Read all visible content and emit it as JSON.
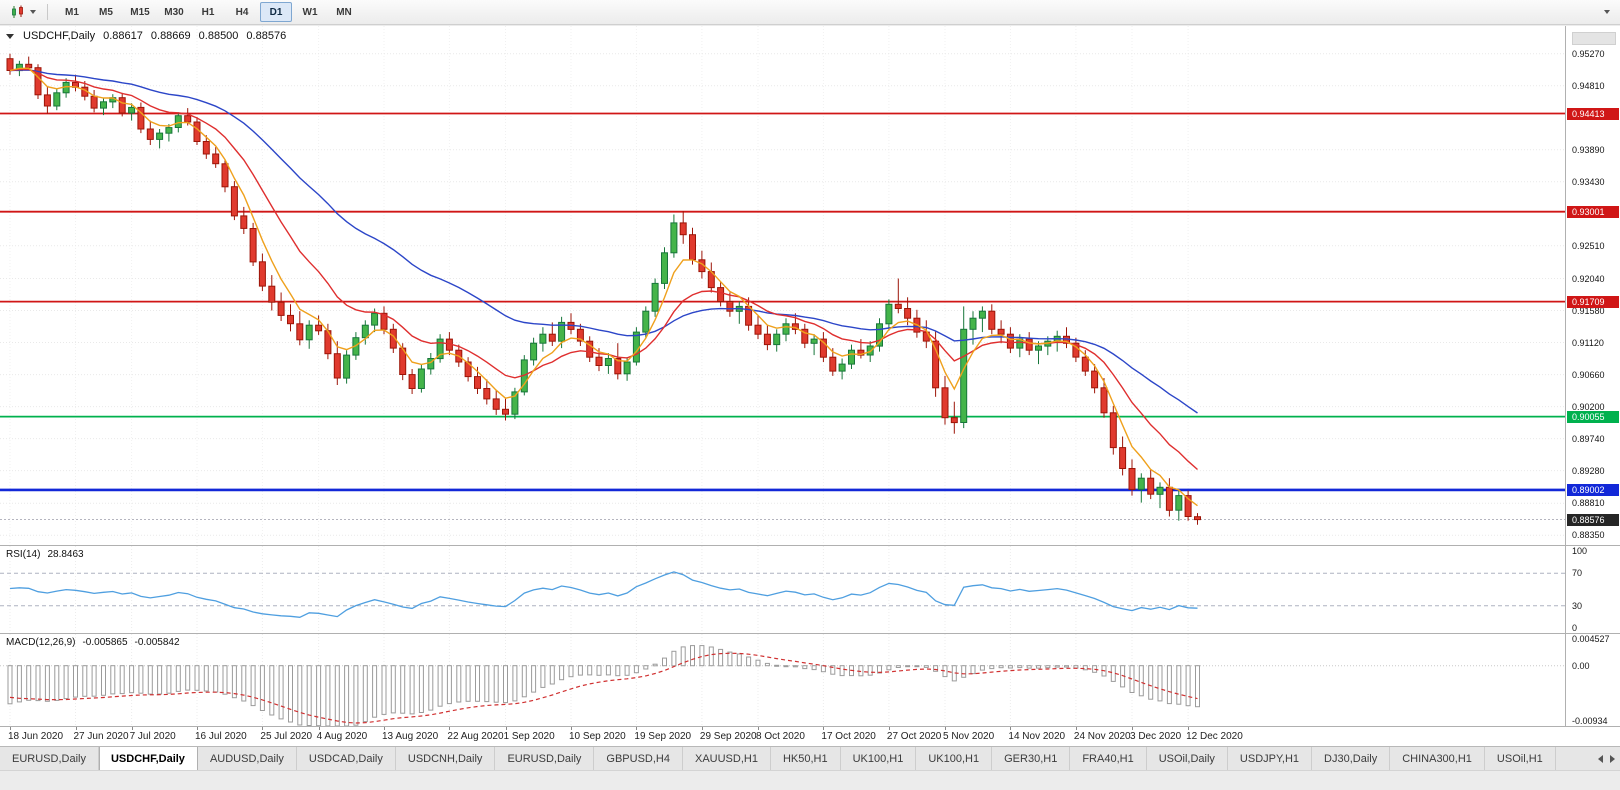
{
  "toolbar": {
    "timeframes": [
      "M1",
      "M5",
      "M15",
      "M30",
      "H1",
      "H4",
      "D1",
      "W1",
      "MN"
    ],
    "active_timeframe": "D1"
  },
  "chart": {
    "symbol_period": "USDCHF,Daily",
    "open": "0.88617",
    "high": "0.88669",
    "low": "0.88500",
    "close": "0.88576"
  },
  "price_scale": {
    "ticks": [
      "0.95270",
      "0.94810",
      "0.93890",
      "0.93430",
      "0.92510",
      "0.92040",
      "0.91580",
      "0.91120",
      "0.90660",
      "0.90200",
      "0.89740",
      "0.89280",
      "0.88810",
      "0.88350"
    ]
  },
  "rsi": {
    "label": "RSI(14)",
    "value": "28.8463",
    "ticks": [
      "100",
      "70",
      "30",
      "0"
    ]
  },
  "macd": {
    "label": "MACD(12,26,9)",
    "value_main": "-0.005865",
    "value_signal": "-0.005842",
    "ticks": [
      "0.004527",
      "0.00",
      "-0.00934"
    ]
  },
  "date_axis": {
    "labels": [
      "18 Jun 2020",
      "27 Jun 2020",
      "7 Jul 2020",
      "16 Jul 2020",
      "25 Jul 2020",
      "4 Aug 2020",
      "13 Aug 2020",
      "22 Aug 2020",
      "1 Sep 2020",
      "10 Sep 2020",
      "19 Sep 2020",
      "29 Sep 2020",
      "8 Oct 2020",
      "17 Oct 2020",
      "27 Oct 2020",
      "5 Nov 2020",
      "14 Nov 2020",
      "24 Nov 2020",
      "3 Dec 2020",
      "12 Dec 2020"
    ],
    "bar_indices": [
      0,
      7,
      13,
      20,
      27,
      33,
      40,
      47,
      53,
      60,
      67,
      74,
      80,
      87,
      94,
      100,
      107,
      114,
      120,
      126
    ]
  },
  "tabs": {
    "items": [
      "EURUSD,Daily",
      "USDCHF,Daily",
      "AUDUSD,Daily",
      "USDCAD,Daily",
      "USDCNH,Daily",
      "EURUSD,Daily",
      "GBPUSD,H4",
      "XAUUSD,H1",
      "HK50,H1",
      "UK100,H1",
      "UK100,H1",
      "GER30,H1",
      "FRA40,H1",
      "USOil,Daily",
      "USDJPY,H1",
      "DJ30,Daily",
      "CHINA300,H1",
      "USOil,H1"
    ],
    "active_index": 1
  },
  "icons": {
    "charts_menu": "candlestick-chart-icon",
    "charts_menu_caret": "caret-down-icon",
    "toolbar_overflow": "chevron-down-icon",
    "one_click_trading": "triangle-down-icon",
    "tab_scroll_left": "triangle-left-icon",
    "tab_scroll_right": "triangle-right-icon"
  },
  "chart_data": {
    "type": "candlestick",
    "symbol": "USDCHF",
    "timeframe": "Daily",
    "price_range": {
      "top": 0.9567,
      "bottom": 0.8821
    },
    "bars": {
      "open": [
        0.952,
        0.9503,
        0.9512,
        0.9507,
        0.9468,
        0.9452,
        0.9471,
        0.9486,
        0.9479,
        0.9466,
        0.9449,
        0.9458,
        0.9464,
        0.9442,
        0.945,
        0.9419,
        0.9404,
        0.9413,
        0.9421,
        0.9438,
        0.9429,
        0.9401,
        0.9383,
        0.9369,
        0.9336,
        0.9294,
        0.9276,
        0.9228,
        0.9193,
        0.917,
        0.9151,
        0.9139,
        0.9116,
        0.9137,
        0.9129,
        0.9096,
        0.9061,
        0.9094,
        0.9119,
        0.9137,
        0.9154,
        0.9131,
        0.9104,
        0.9066,
        0.9046,
        0.9074,
        0.9089,
        0.9117,
        0.9101,
        0.9084,
        0.9063,
        0.9046,
        0.9031,
        0.9016,
        0.9009,
        0.9041,
        0.9087,
        0.9111,
        0.9124,
        0.9114,
        0.9141,
        0.9131,
        0.9114,
        0.9091,
        0.9079,
        0.9089,
        0.9067,
        0.9084,
        0.9127,
        0.9157,
        0.9197,
        0.9241,
        0.9284,
        0.9267,
        0.9231,
        0.9214,
        0.9191,
        0.9171,
        0.9157,
        0.9164,
        0.9137,
        0.9124,
        0.9109,
        0.9124,
        0.9139,
        0.9131,
        0.9111,
        0.9117,
        0.9091,
        0.9071,
        0.9081,
        0.9101,
        0.9094,
        0.9107,
        0.9139,
        0.9167,
        0.9161,
        0.9147,
        0.9127,
        0.9114,
        0.9047,
        0.9004,
        0.8997,
        0.9131,
        0.9147,
        0.9157,
        0.9131,
        0.9124,
        0.9104,
        0.9117,
        0.9101,
        0.9107,
        0.9114,
        0.9121,
        0.9111,
        0.9091,
        0.9071,
        0.9047,
        0.9011,
        0.8961,
        0.8931,
        0.8901,
        0.8917,
        0.8894,
        0.8904,
        0.8871,
        0.8892,
        0.88617
      ],
      "high": [
        0.9527,
        0.9517,
        0.9523,
        0.9512,
        0.948,
        0.9477,
        0.9492,
        0.9497,
        0.9488,
        0.9475,
        0.9463,
        0.9469,
        0.9471,
        0.9456,
        0.9457,
        0.9431,
        0.9419,
        0.9426,
        0.9443,
        0.9449,
        0.9436,
        0.941,
        0.9393,
        0.9375,
        0.9344,
        0.9307,
        0.9284,
        0.924,
        0.9209,
        0.9184,
        0.9167,
        0.9157,
        0.9144,
        0.9151,
        0.9139,
        0.9114,
        0.9101,
        0.9127,
        0.9144,
        0.9161,
        0.9164,
        0.9139,
        0.9111,
        0.9074,
        0.9081,
        0.9097,
        0.9124,
        0.9127,
        0.9109,
        0.9091,
        0.9077,
        0.9059,
        0.9044,
        0.9032,
        0.9047,
        0.9094,
        0.9119,
        0.9134,
        0.9141,
        0.9149,
        0.9154,
        0.9139,
        0.9121,
        0.9104,
        0.9097,
        0.9111,
        0.9091,
        0.9134,
        0.9164,
        0.9204,
        0.9249,
        0.9296,
        0.9301,
        0.9277,
        0.9244,
        0.9227,
        0.9199,
        0.9184,
        0.9171,
        0.9177,
        0.9151,
        0.9137,
        0.9131,
        0.9147,
        0.9154,
        0.9139,
        0.9124,
        0.9127,
        0.9104,
        0.9089,
        0.9109,
        0.9117,
        0.9114,
        0.9147,
        0.9174,
        0.9204,
        0.9177,
        0.9159,
        0.9144,
        0.9129,
        0.9064,
        0.9027,
        0.9164,
        0.9157,
        0.9164,
        0.9167,
        0.9144,
        0.9134,
        0.9124,
        0.9127,
        0.9114,
        0.9121,
        0.9129,
        0.9134,
        0.9119,
        0.9101,
        0.9081,
        0.9061,
        0.9021,
        0.8977,
        0.8944,
        0.8924,
        0.8929,
        0.8911,
        0.8917,
        0.8901,
        0.8899,
        0.88669
      ],
      "low": [
        0.9497,
        0.9495,
        0.9504,
        0.9462,
        0.9441,
        0.9446,
        0.9464,
        0.9473,
        0.946,
        0.9443,
        0.9439,
        0.9449,
        0.9437,
        0.9431,
        0.9413,
        0.9396,
        0.9391,
        0.9401,
        0.9414,
        0.9424,
        0.9396,
        0.9376,
        0.9363,
        0.9328,
        0.9288,
        0.9268,
        0.9222,
        0.9186,
        0.9158,
        0.9143,
        0.9128,
        0.9108,
        0.9103,
        0.9123,
        0.9088,
        0.9051,
        0.9053,
        0.9087,
        0.9109,
        0.9127,
        0.9124,
        0.9097,
        0.9058,
        0.9038,
        0.904,
        0.9066,
        0.9083,
        0.9094,
        0.9077,
        0.9056,
        0.9038,
        0.9023,
        0.9008,
        0.9,
        0.9002,
        0.9036,
        0.9079,
        0.9099,
        0.9107,
        0.9104,
        0.9124,
        0.9107,
        0.9084,
        0.9071,
        0.9067,
        0.9059,
        0.9057,
        0.9079,
        0.9119,
        0.9149,
        0.9189,
        0.9234,
        0.9254,
        0.9224,
        0.9204,
        0.9184,
        0.9164,
        0.9149,
        0.9139,
        0.9129,
        0.9117,
        0.9101,
        0.9099,
        0.9114,
        0.9124,
        0.9104,
        0.9094,
        0.9084,
        0.9064,
        0.9059,
        0.9074,
        0.9089,
        0.9084,
        0.9099,
        0.9129,
        0.9154,
        0.9137,
        0.9119,
        0.9104,
        0.9034,
        0.8994,
        0.8981,
        0.8989,
        0.9109,
        0.9127,
        0.9124,
        0.9111,
        0.9097,
        0.9091,
        0.9094,
        0.9081,
        0.9094,
        0.9099,
        0.9104,
        0.9084,
        0.9064,
        0.9039,
        0.9004,
        0.8951,
        0.8921,
        0.8892,
        0.8882,
        0.8887,
        0.8874,
        0.8862,
        0.8856,
        0.8856,
        0.885
      ],
      "close": [
        0.9503,
        0.9512,
        0.9507,
        0.9468,
        0.9452,
        0.9471,
        0.9486,
        0.9479,
        0.9466,
        0.9449,
        0.9458,
        0.9464,
        0.9442,
        0.945,
        0.9419,
        0.9404,
        0.9413,
        0.9421,
        0.9438,
        0.9429,
        0.9401,
        0.9383,
        0.9369,
        0.9336,
        0.9294,
        0.9276,
        0.9228,
        0.9193,
        0.917,
        0.9151,
        0.9139,
        0.9116,
        0.9137,
        0.9129,
        0.9096,
        0.9061,
        0.9094,
        0.9119,
        0.9137,
        0.9154,
        0.9131,
        0.9104,
        0.9066,
        0.9046,
        0.9074,
        0.9089,
        0.9117,
        0.9101,
        0.9084,
        0.9063,
        0.9046,
        0.9031,
        0.9016,
        0.9009,
        0.9041,
        0.9087,
        0.9111,
        0.9124,
        0.9114,
        0.9141,
        0.9131,
        0.9114,
        0.9091,
        0.9079,
        0.9089,
        0.9067,
        0.9084,
        0.9127,
        0.9157,
        0.9197,
        0.9241,
        0.9284,
        0.9267,
        0.9231,
        0.9214,
        0.9191,
        0.9171,
        0.9157,
        0.9164,
        0.9137,
        0.9124,
        0.9109,
        0.9124,
        0.9139,
        0.9131,
        0.9111,
        0.9117,
        0.9091,
        0.9071,
        0.9081,
        0.9101,
        0.9094,
        0.9107,
        0.9139,
        0.9167,
        0.9161,
        0.9147,
        0.9127,
        0.9114,
        0.9047,
        0.9004,
        0.8997,
        0.9131,
        0.9147,
        0.9157,
        0.9131,
        0.9124,
        0.9104,
        0.9117,
        0.9101,
        0.9107,
        0.9114,
        0.9121,
        0.9111,
        0.9091,
        0.9071,
        0.9047,
        0.9011,
        0.8961,
        0.8931,
        0.8901,
        0.8917,
        0.8894,
        0.8904,
        0.8871,
        0.8892,
        0.8862,
        0.88576
      ]
    },
    "horizontal_lines": [
      {
        "price": 0.94413,
        "label": "0.94413",
        "color": "#d01616",
        "width": 1.8
      },
      {
        "price": 0.93001,
        "label": "0.93001",
        "color": "#d01616",
        "width": 1.8
      },
      {
        "price": 0.91709,
        "label": "0.91709",
        "color": "#d01616",
        "width": 1.8
      },
      {
        "price": 0.90055,
        "label": "0.90055",
        "color": "#00b14e",
        "width": 1.8
      },
      {
        "price": 0.89002,
        "label": "0.89002",
        "color": "#1228d8",
        "width": 2.6
      }
    ],
    "current_price": {
      "price": 0.88576,
      "label": "0.88576",
      "bg": "#262626"
    },
    "moving_averages": [
      {
        "period": 34,
        "color": "#2c46c8"
      },
      {
        "period": 13,
        "color": "#df2f2f"
      },
      {
        "period": 5,
        "color": "#efa11d"
      }
    ],
    "rsi": {
      "period": 14,
      "levels": [
        70,
        30
      ],
      "range": [
        0,
        100
      ],
      "color": "#4f9fe0",
      "last": 28.8463
    },
    "macd": {
      "fast": 12,
      "slow": 26,
      "signal": 9,
      "range": [
        -0.0095,
        0.005
      ],
      "last_main": -0.005865,
      "last_signal": -0.005842
    },
    "colors": {
      "up": "#44b44a",
      "up_border": "#17763a",
      "down": "#e03a2e",
      "down_border": "#9c1508",
      "background": "#ffffff"
    }
  }
}
